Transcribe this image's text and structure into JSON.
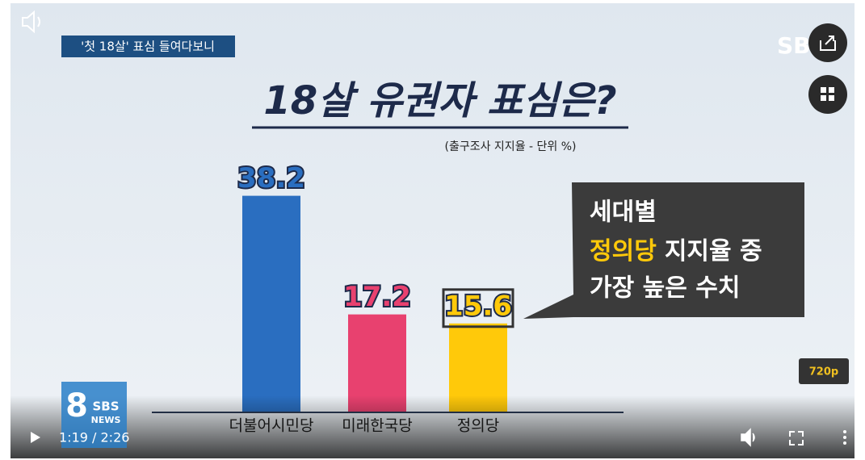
{
  "video": {
    "caption": "'첫 18살' 표심 들여다보니",
    "watermark": "SB",
    "quality": "720p",
    "time": "1:19 / 2:26",
    "logo_number": "8",
    "logo_brand": "SBS",
    "logo_sub": "NEWS"
  },
  "callout": {
    "line1": "세대별",
    "line2_highlight": "정의당",
    "line2_rest": "지지율 중",
    "line3": "가장 높은 수치"
  },
  "chart_data": {
    "type": "bar",
    "title": "18살 유권자 표심은?",
    "subtitle": "(출구조사 지지율 - 단위 %)",
    "categories": [
      "더불어시민당",
      "미래한국당",
      "정의당"
    ],
    "values": [
      38.2,
      17.2,
      15.6
    ],
    "colors": [
      "#2a6ec0",
      "#e8416f",
      "#ffc90a"
    ]
  }
}
